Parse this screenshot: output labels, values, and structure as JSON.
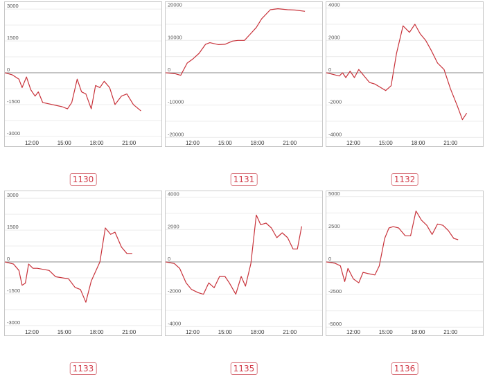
{
  "colors": {
    "line": "#c8323a",
    "grid": "#ececec",
    "zero": "#8a8a8a",
    "border": "#c8c8c8",
    "badge": "#d23c4a"
  },
  "chart_data": [
    {
      "type": "line",
      "label": "1130",
      "ylim": [
        -3200,
        3200
      ],
      "xlim": [
        9.5,
        24
      ],
      "yticks": [
        3000,
        1500,
        0,
        -1500,
        -3000
      ],
      "yticklabels": [
        "3000",
        "1500",
        "0",
        "-1500",
        "-3000"
      ],
      "xticks": [
        12,
        15,
        18,
        21
      ],
      "xticklabels": [
        "12:00",
        "15:00",
        "18:00",
        "21:00"
      ],
      "x": [
        9.5,
        10.2,
        10.8,
        11.1,
        11.5,
        11.9,
        12.3,
        12.6,
        13.0,
        14.8,
        15.3,
        15.7,
        16.2,
        16.6,
        17.0,
        17.5,
        17.9,
        18.3,
        18.7,
        19.2,
        19.7,
        20.3,
        20.8,
        21.4,
        22.1
      ],
      "y": [
        0,
        -100,
        -300,
        -700,
        -200,
        -800,
        -1100,
        -900,
        -1400,
        -1600,
        -1700,
        -1400,
        -300,
        -900,
        -1000,
        -1700,
        -600,
        -700,
        -400,
        -700,
        -1500,
        -1100,
        -1000,
        -1500,
        -1800
      ]
    },
    {
      "type": "line",
      "label": "1131",
      "ylim": [
        -21000,
        21000
      ],
      "xlim": [
        9.5,
        24
      ],
      "yticks": [
        20000,
        10000,
        0,
        -10000,
        -20000
      ],
      "yticklabels": [
        "20000",
        "10000",
        "0",
        "-10000",
        "-20000"
      ],
      "xticks": [
        12,
        15,
        18,
        21
      ],
      "xticklabels": [
        "12:00",
        "15:00",
        "18:00",
        "21:00"
      ],
      "x": [
        9.5,
        10.4,
        10.9,
        11.5,
        12.0,
        12.6,
        13.2,
        13.6,
        14.4,
        15.0,
        15.7,
        16.2,
        16.8,
        17.3,
        17.9,
        18.4,
        19.2,
        19.9,
        20.8,
        21.5,
        22.4
      ],
      "y": [
        0,
        -300,
        -800,
        3000,
        4200,
        6000,
        8800,
        9300,
        8700,
        8800,
        9800,
        10000,
        10000,
        11800,
        14000,
        16700,
        19500,
        19800,
        19500,
        19400,
        19000
      ]
    },
    {
      "type": "line",
      "label": "1132",
      "ylim": [
        -4200,
        4200
      ],
      "xlim": [
        9.5,
        24
      ],
      "yticks": [
        4000,
        2000,
        0,
        -2000,
        -4000
      ],
      "yticklabels": [
        "4000",
        "2000",
        "0",
        "-2000",
        "-4000"
      ],
      "xticks": [
        12,
        15,
        18,
        21
      ],
      "xticklabels": [
        "12:00",
        "15:00",
        "18:00",
        "21:00"
      ],
      "x": [
        9.5,
        10.1,
        10.7,
        11.0,
        11.3,
        11.7,
        12.1,
        12.5,
        13.0,
        13.5,
        14.0,
        14.5,
        15.0,
        15.5,
        16.0,
        16.6,
        17.2,
        17.7,
        18.2,
        18.7,
        19.2,
        19.8,
        20.4,
        21.0,
        21.6,
        22.1,
        22.5
      ],
      "y": [
        0,
        -100,
        -200,
        0,
        -300,
        100,
        -300,
        200,
        -200,
        -600,
        -700,
        -900,
        -1100,
        -800,
        1200,
        2900,
        2500,
        3000,
        2400,
        2000,
        1400,
        600,
        200,
        -1000,
        -2000,
        -2900,
        -2500
      ]
    },
    {
      "type": "line",
      "label": "1133",
      "ylim": [
        -3200,
        3200
      ],
      "xlim": [
        9.5,
        24
      ],
      "yticks": [
        3000,
        1500,
        0,
        -1500,
        -3000
      ],
      "yticklabels": [
        "3000",
        "1500",
        "0",
        "-1500",
        "-3000"
      ],
      "xticks": [
        12,
        15,
        18,
        21
      ],
      "xticklabels": [
        "12:00",
        "15:00",
        "18:00",
        "21:00"
      ],
      "x": [
        9.5,
        10.3,
        10.8,
        11.1,
        11.4,
        11.7,
        12.1,
        12.5,
        13.6,
        14.2,
        15.4,
        16.0,
        16.5,
        17.0,
        17.5,
        18.3,
        18.8,
        19.3,
        19.7,
        20.3,
        20.8,
        21.3
      ],
      "y": [
        0,
        -100,
        -400,
        -1100,
        -1000,
        -100,
        -300,
        -300,
        -400,
        -700,
        -800,
        -1200,
        -1300,
        -1900,
        -900,
        0,
        1600,
        1300,
        1400,
        700,
        400,
        400
      ]
    },
    {
      "type": "line",
      "label": "1135",
      "ylim": [
        -4200,
        4200
      ],
      "xlim": [
        9.5,
        24
      ],
      "yticks": [
        4000,
        2000,
        0,
        -2000,
        -4000
      ],
      "yticklabels": [
        "4000",
        "2000",
        "0",
        "-2000",
        "-4000"
      ],
      "xticks": [
        12,
        15,
        18,
        21
      ],
      "xticklabels": [
        "12:00",
        "15:00",
        "18:00",
        "21:00"
      ],
      "x": [
        9.5,
        10.3,
        10.8,
        11.4,
        11.9,
        12.5,
        13.0,
        13.5,
        14.0,
        14.5,
        15.0,
        15.4,
        16.0,
        16.5,
        16.9,
        17.4,
        17.9,
        18.3,
        18.8,
        19.3,
        19.8,
        20.3,
        20.8,
        21.3,
        21.7,
        22.1
      ],
      "y": [
        0,
        -100,
        -400,
        -1300,
        -1700,
        -1900,
        -2000,
        -1300,
        -1600,
        -900,
        -900,
        -1300,
        -2000,
        -900,
        -1500,
        -100,
        2900,
        2300,
        2400,
        2100,
        1500,
        1800,
        1500,
        800,
        800,
        2200
      ]
    },
    {
      "type": "line",
      "label": "1136",
      "ylim": [
        -5200,
        5200
      ],
      "xlim": [
        9.5,
        24
      ],
      "yticks": [
        5000,
        2500,
        0,
        -2500,
        -5000
      ],
      "yticklabels": [
        "5000",
        "2500",
        "0",
        "-2500",
        "-5000"
      ],
      "xticks": [
        12,
        15,
        18,
        21
      ],
      "xticklabels": [
        "12:00",
        "15:00",
        "18:00",
        "21:00"
      ],
      "x": [
        9.5,
        10.3,
        10.8,
        11.2,
        11.5,
        12.0,
        12.5,
        12.9,
        13.4,
        14.0,
        14.4,
        14.9,
        15.3,
        15.7,
        16.2,
        16.8,
        17.3,
        17.8,
        18.3,
        18.8,
        19.3,
        19.8,
        20.3,
        20.8,
        21.3,
        21.7
      ],
      "y": [
        0,
        -100,
        -300,
        -1500,
        -500,
        -1300,
        -1600,
        -800,
        -900,
        -1000,
        -300,
        1800,
        2600,
        2700,
        2600,
        2000,
        2000,
        3900,
        3200,
        2800,
        2100,
        2900,
        2800,
        2400,
        1800,
        1700
      ]
    }
  ]
}
